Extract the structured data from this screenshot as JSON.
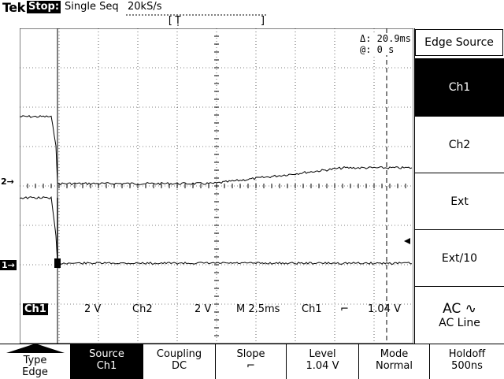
{
  "header": {
    "brand": "Tek",
    "run_state": "Stop:",
    "acq_mode": "Single Seq",
    "sample_rate": "20kS/s",
    "record_bracket": "[ T ]"
  },
  "cursor_readout": {
    "delta": "Δ: 20.9ms",
    "at": "@: 0 s"
  },
  "channel_markers": {
    "ch2": "2→",
    "ch1": "1→"
  },
  "status": {
    "ch1_label": "Ch1",
    "ch1_scale": "2 V",
    "ch2_label": "Ch2",
    "ch2_scale": "2 V",
    "timebase": "M 2.5ms",
    "trig_source": "Ch1",
    "trig_slope": "⌐",
    "trig_level": "1.04 V"
  },
  "side_menu": {
    "title": "Edge Source",
    "items": [
      {
        "label": "Ch1",
        "selected": true
      },
      {
        "label": "Ch2",
        "selected": false
      },
      {
        "label": "Ext",
        "selected": false
      },
      {
        "label": "Ext/10",
        "selected": false
      },
      {
        "label": "AC Line",
        "selected": false
      }
    ],
    "ac_prefix": "AC ∿"
  },
  "bottom_menu": [
    {
      "line1": "Type",
      "line2": "Edge",
      "selected": false
    },
    {
      "line1": "Source",
      "line2": "Ch1",
      "selected": true
    },
    {
      "line1": "Coupling",
      "line2": "DC",
      "selected": false
    },
    {
      "line1": "Slope",
      "line2": "⌐",
      "selected": false
    },
    {
      "line1": "Level",
      "line2": "1.04 V",
      "selected": false
    },
    {
      "line1": "Mode",
      "line2": "Normal",
      "selected": false
    },
    {
      "line1": "Holdoff",
      "line2": "500ns",
      "selected": false
    }
  ],
  "colors": {
    "background": "#ffffff",
    "trace": "#000000",
    "grid": "#000000"
  }
}
